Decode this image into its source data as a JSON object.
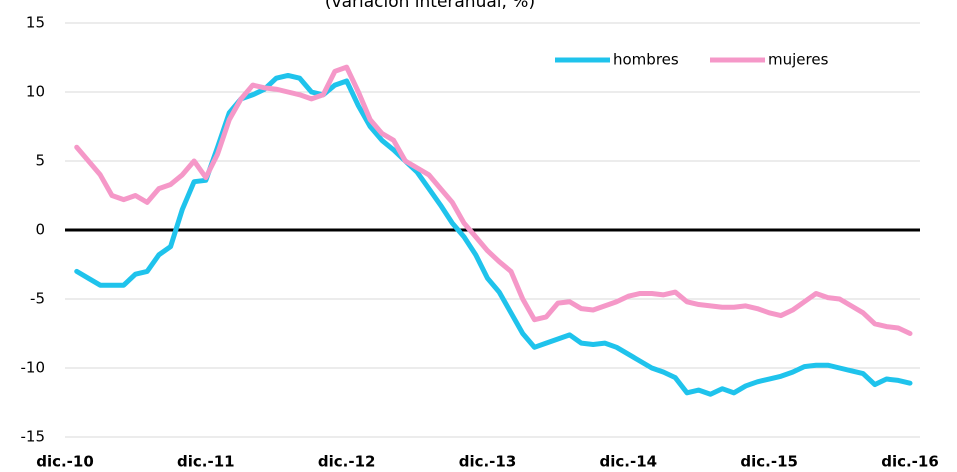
{
  "chart_data": {
    "type": "line",
    "subtitle": "(variación interanual, %)",
    "x": [
      1,
      2,
      3,
      4,
      5,
      6,
      7,
      8,
      9,
      10,
      11,
      12,
      13,
      14,
      15,
      16,
      17,
      18,
      19,
      20,
      21,
      22,
      23,
      24,
      25,
      26,
      27,
      28,
      29,
      30,
      31,
      32,
      33,
      34,
      35,
      36,
      37,
      38,
      39,
      40,
      41,
      42,
      43,
      44,
      45,
      46,
      47,
      48,
      49,
      50,
      51,
      52,
      53,
      54,
      55,
      56,
      57,
      58,
      59,
      60,
      61,
      62,
      63,
      64,
      65,
      66,
      67,
      68,
      69,
      70,
      71,
      72
    ],
    "series": [
      {
        "name": "hombres",
        "color": "#1fc3ec",
        "values": [
          -3,
          -3.5,
          -4,
          -4,
          -4,
          -3.2,
          -3,
          -1.8,
          -1.2,
          1.5,
          3.5,
          3.6,
          6,
          8.5,
          9.5,
          9.8,
          10.2,
          11,
          11.2,
          11,
          10,
          9.8,
          10.5,
          10.8,
          9,
          7.5,
          6.5,
          5.8,
          5,
          4.2,
          3,
          1.8,
          0.5,
          -0.5,
          -1.8,
          -3.5,
          -4.5,
          -6,
          -7.5,
          -8.5,
          -8.2,
          -7.9,
          -7.6,
          -8.2,
          -8.3,
          -8.2,
          -8.5,
          -9,
          -9.5,
          -10,
          -10.3,
          -10.7,
          -11.8,
          -11.6,
          -11.9,
          -11.5,
          -11.8,
          -11.3,
          -11,
          -10.8,
          -10.6,
          -10.3,
          -9.9,
          -9.8,
          -9.8,
          -10,
          -10.2,
          -10.4,
          -11.2,
          -10.8,
          -10.9,
          -11.1
        ]
      },
      {
        "name": "mujeres",
        "color": "#f598c8",
        "values": [
          6,
          5,
          4,
          2.5,
          2.2,
          2.5,
          2,
          3,
          3.3,
          4,
          5,
          3.8,
          5.5,
          8,
          9.5,
          10.5,
          10.3,
          10.2,
          10,
          9.8,
          9.5,
          9.8,
          11.5,
          11.8,
          10,
          8,
          7,
          6.5,
          5,
          4.5,
          4,
          3,
          2,
          0.5,
          -0.5,
          -1.5,
          -2.3,
          -3,
          -5,
          -6.5,
          -6.3,
          -5.3,
          -5.2,
          -5.7,
          -5.8,
          -5.5,
          -5.2,
          -4.8,
          -4.6,
          -4.6,
          -4.7,
          -4.5,
          -5.2,
          -5.4,
          -5.5,
          -5.6,
          -5.6,
          -5.5,
          -5.7,
          -6,
          -6.2,
          -5.8,
          -5.2,
          -4.6,
          -4.9,
          -5,
          -5.5,
          -6,
          -6.8,
          -7,
          -7.1,
          -7.5
        ]
      }
    ],
    "xlim": [
      0,
      72
    ],
    "xticks": [
      {
        "value": 0,
        "label": "dic.-10"
      },
      {
        "value": 12,
        "label": "dic.-11"
      },
      {
        "value": 24,
        "label": "dic.-12"
      },
      {
        "value": 36,
        "label": "dic.-13"
      },
      {
        "value": 48,
        "label": "dic.-14"
      },
      {
        "value": 60,
        "label": "dic.-15"
      },
      {
        "value": 72,
        "label": "dic.-16"
      }
    ],
    "ylim": [
      -15,
      15
    ],
    "yticks": [
      -15,
      -10,
      -5,
      0,
      5,
      10,
      15
    ],
    "grid": true,
    "legend": "top-right"
  }
}
